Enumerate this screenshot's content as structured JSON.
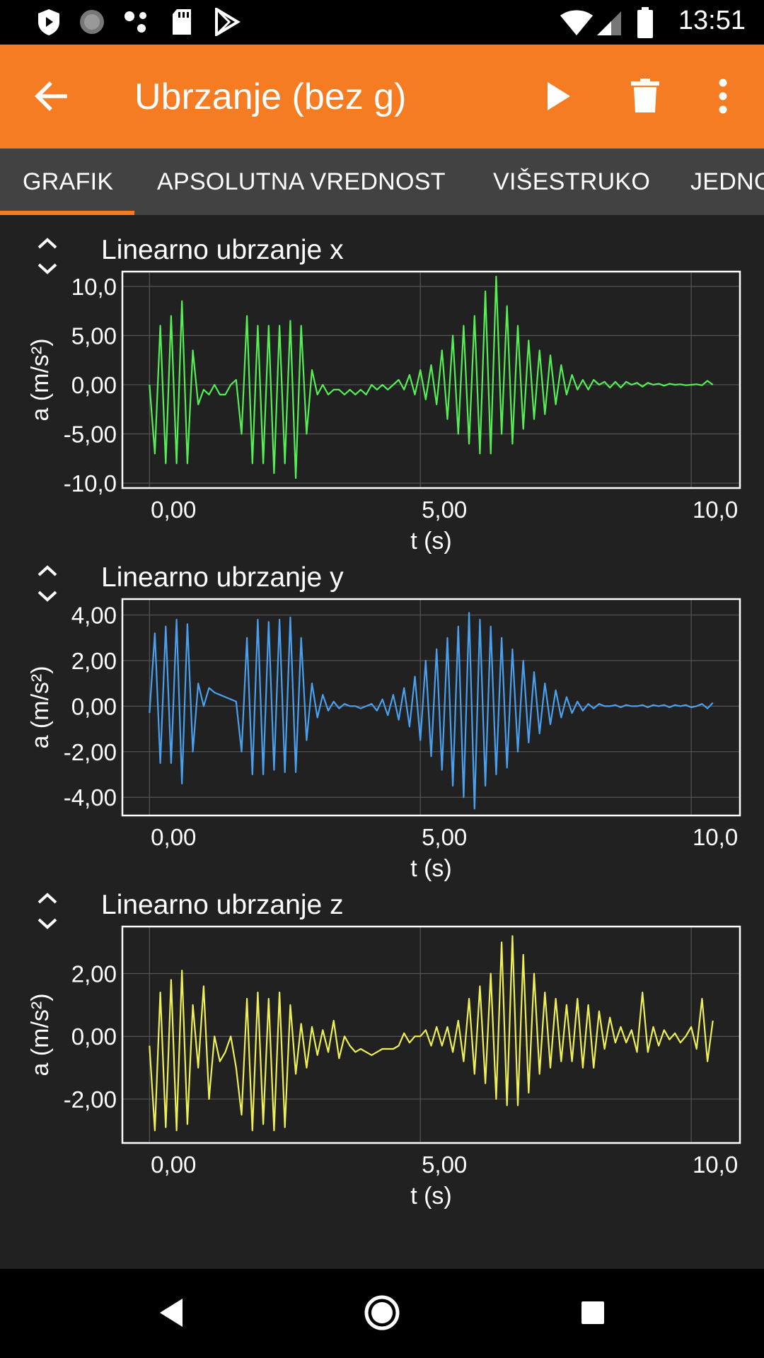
{
  "status_bar": {
    "time": "13:51",
    "icons": [
      "shield-icon",
      "loading-icon",
      "dots-icon",
      "sd-card-icon",
      "play-store-icon",
      "wifi-icon",
      "signal-icon",
      "battery-icon"
    ]
  },
  "app_bar": {
    "title": "Ubrzanje (bez g)",
    "icons": [
      "back-arrow-icon",
      "play-icon",
      "trash-icon",
      "more-vert-icon"
    ]
  },
  "tabs": [
    {
      "label": "GRAFIK",
      "selected": true
    },
    {
      "label": "APSOLUTNA VREDNOST",
      "selected": false
    },
    {
      "label": "VIŠESTRUKO",
      "selected": false
    },
    {
      "label": "JEDNO",
      "selected": false
    }
  ],
  "colors": {
    "accent": "#f57c22",
    "background": "#212121",
    "tab_bar": "#424242",
    "x_series": "#55ee55",
    "y_series": "#4aa0ee",
    "z_series": "#eeee55"
  },
  "chart_data": [
    {
      "type": "line",
      "title": "Linearno ubrzanje x",
      "xlabel": "t (s)",
      "ylabel": "a (m/s²)",
      "xlim": [
        -0.5,
        10.9
      ],
      "ylim": [
        -10.5,
        11.5
      ],
      "xticks": [
        0,
        5,
        10
      ],
      "xtick_labels": [
        "0,00",
        "5,00",
        "10,0"
      ],
      "yticks": [
        10,
        5,
        0,
        -5,
        -10
      ],
      "ytick_labels": [
        "10,0",
        "5,00",
        "0,00",
        "-5,00",
        "-10,0"
      ],
      "color": "#55ee55",
      "grid": true,
      "series": [
        {
          "x": [
            0,
            0.1,
            0.2,
            0.3,
            0.4,
            0.5,
            0.6,
            0.7,
            0.8,
            0.9,
            1,
            1.1,
            1.2,
            1.3,
            1.4,
            1.5,
            1.6,
            1.7,
            1.8,
            1.9,
            2,
            2.1,
            2.2,
            2.3,
            2.4,
            2.5,
            2.6,
            2.7,
            2.8,
            2.9,
            3,
            3.1,
            3.2,
            3.3,
            3.4,
            3.5,
            3.6,
            3.7,
            3.8,
            3.9,
            4,
            4.1,
            4.2,
            4.3,
            4.4,
            4.5,
            4.6,
            4.7,
            4.8,
            4.9,
            5,
            5.1,
            5.2,
            5.3,
            5.4,
            5.5,
            5.6,
            5.7,
            5.8,
            5.9,
            6,
            6.1,
            6.2,
            6.3,
            6.4,
            6.5,
            6.6,
            6.7,
            6.8,
            6.9,
            7,
            7.1,
            7.2,
            7.3,
            7.4,
            7.5,
            7.6,
            7.7,
            7.8,
            7.9,
            8,
            8.1,
            8.2,
            8.3,
            8.4,
            8.5,
            8.6,
            8.7,
            8.8,
            8.9,
            9,
            9.1,
            9.2,
            9.3,
            9.4,
            9.5,
            9.6,
            9.7,
            9.8,
            9.9,
            10,
            10.1,
            10.2,
            10.3,
            10.4
          ],
          "y": [
            0,
            -7,
            6,
            -8,
            7,
            -8,
            8.5,
            -8,
            3.5,
            -2,
            -0.5,
            -1,
            0,
            -1,
            -1,
            0,
            0.5,
            -5,
            7,
            -8,
            6,
            -8,
            6,
            -9,
            6,
            -8,
            6.5,
            -9.5,
            6,
            -5,
            1.5,
            -1,
            0,
            -1,
            -0.5,
            -0.5,
            -1,
            -0.5,
            -1,
            -0.5,
            -1,
            0,
            -0.5,
            0,
            -0.5,
            0,
            0.5,
            -0.5,
            1,
            -1,
            1.5,
            -1.5,
            2,
            -2,
            3.5,
            -3.5,
            5,
            -5,
            6,
            -6,
            7,
            -7,
            9.5,
            -7,
            11,
            -5,
            8,
            -6,
            6,
            -4.5,
            4.5,
            -3.5,
            3.5,
            -3,
            3,
            -2,
            2,
            -1,
            1,
            -0.5,
            0.5,
            -0.5,
            0.5,
            0,
            0.3,
            -0.3,
            0.3,
            -0.3,
            0.3,
            0,
            0.2,
            -0.2,
            0.2,
            0,
            0.1,
            -0.1,
            0.1,
            0,
            0.05,
            -0.05,
            0,
            0.05,
            -0.05,
            0.4,
            0
          ]
        }
      ]
    },
    {
      "type": "line",
      "title": "Linearno ubrzanje y",
      "xlabel": "t (s)",
      "ylabel": "a (m/s²)",
      "xlim": [
        -0.5,
        10.9
      ],
      "ylim": [
        -4.8,
        4.7
      ],
      "xticks": [
        0,
        5,
        10
      ],
      "xtick_labels": [
        "0,00",
        "5,00",
        "10,0"
      ],
      "yticks": [
        4,
        2,
        0,
        -2,
        -4
      ],
      "ytick_labels": [
        "4,00",
        "2,00",
        "0,00",
        "-2,00",
        "-4,00"
      ],
      "color": "#4aa0ee",
      "grid": true,
      "series": [
        {
          "x": [
            0,
            0.1,
            0.2,
            0.3,
            0.4,
            0.5,
            0.6,
            0.7,
            0.8,
            0.9,
            1,
            1.1,
            1.2,
            1.3,
            1.4,
            1.5,
            1.6,
            1.7,
            1.8,
            1.9,
            2,
            2.1,
            2.2,
            2.3,
            2.4,
            2.5,
            2.6,
            2.7,
            2.8,
            2.9,
            3,
            3.1,
            3.2,
            3.3,
            3.4,
            3.5,
            3.6,
            3.7,
            3.8,
            3.9,
            4,
            4.1,
            4.2,
            4.3,
            4.4,
            4.5,
            4.6,
            4.7,
            4.8,
            4.9,
            5,
            5.1,
            5.2,
            5.3,
            5.4,
            5.5,
            5.6,
            5.7,
            5.8,
            5.9,
            6,
            6.1,
            6.2,
            6.3,
            6.4,
            6.5,
            6.6,
            6.7,
            6.8,
            6.9,
            7,
            7.1,
            7.2,
            7.3,
            7.4,
            7.5,
            7.6,
            7.7,
            7.8,
            7.9,
            8,
            8.1,
            8.2,
            8.3,
            8.4,
            8.5,
            8.6,
            8.7,
            8.8,
            8.9,
            9,
            9.1,
            9.2,
            9.3,
            9.4,
            9.5,
            9.6,
            9.7,
            9.8,
            9.9,
            10,
            10.1,
            10.2,
            10.3,
            10.4
          ],
          "y": [
            -0.3,
            3.2,
            -2.5,
            3.5,
            -2.5,
            3.8,
            -3.4,
            3.6,
            -2,
            1,
            0,
            0.8,
            0.6,
            0.5,
            0.4,
            0.3,
            0.2,
            -2,
            3,
            -3,
            3.8,
            -3,
            3.7,
            -2.8,
            3.8,
            -2.9,
            3.9,
            -2.9,
            3,
            -1.5,
            1,
            -0.5,
            0.5,
            -0.2,
            0.2,
            -0.1,
            0.1,
            0,
            0,
            -0.1,
            0,
            0.1,
            -0.2,
            0.3,
            -0.4,
            0.5,
            -0.6,
            0.8,
            -0.9,
            1.3,
            -1.5,
            2,
            -2.2,
            2.5,
            -2.8,
            3,
            -3.5,
            3.5,
            -4,
            4.1,
            -4.5,
            3.8,
            -3.5,
            3.5,
            -3,
            3,
            -2.7,
            2.5,
            -2,
            2,
            -1.6,
            1.5,
            -1.2,
            1,
            -0.8,
            0.7,
            -0.5,
            0.4,
            -0.3,
            0.2,
            -0.2,
            0.1,
            -0.1,
            0.1,
            0,
            0,
            0.05,
            -0.05,
            0.05,
            0,
            0,
            0.05,
            -0.05,
            0.05,
            0,
            0.05,
            -0.05,
            0.05,
            0,
            0.05,
            -0.05,
            0,
            0.1,
            -0.1,
            0.15
          ]
        }
      ]
    },
    {
      "type": "line",
      "title": "Linearno ubrzanje z",
      "xlabel": "t (s)",
      "ylabel": "a (m/s²)",
      "xlim": [
        -0.5,
        10.9
      ],
      "ylim": [
        -3.4,
        3.5
      ],
      "xticks": [
        0,
        5,
        10
      ],
      "xtick_labels": [
        "0,00",
        "5,00",
        "10,0"
      ],
      "yticks": [
        2,
        0,
        -2
      ],
      "ytick_labels": [
        "2,00",
        "0,00",
        "-2,00"
      ],
      "color": "#eeee55",
      "grid": true,
      "series": [
        {
          "x": [
            0,
            0.1,
            0.2,
            0.3,
            0.4,
            0.5,
            0.6,
            0.7,
            0.8,
            0.9,
            1,
            1.1,
            1.2,
            1.3,
            1.4,
            1.5,
            1.6,
            1.7,
            1.8,
            1.9,
            2,
            2.1,
            2.2,
            2.3,
            2.4,
            2.5,
            2.6,
            2.7,
            2.8,
            2.9,
            3,
            3.1,
            3.2,
            3.3,
            3.4,
            3.5,
            3.6,
            3.7,
            3.8,
            3.9,
            4,
            4.1,
            4.2,
            4.3,
            4.4,
            4.5,
            4.6,
            4.7,
            4.8,
            4.9,
            5,
            5.1,
            5.2,
            5.3,
            5.4,
            5.5,
            5.6,
            5.7,
            5.8,
            5.9,
            6,
            6.1,
            6.2,
            6.3,
            6.4,
            6.5,
            6.6,
            6.7,
            6.8,
            6.9,
            7,
            7.1,
            7.2,
            7.3,
            7.4,
            7.5,
            7.6,
            7.7,
            7.8,
            7.9,
            8,
            8.1,
            8.2,
            8.3,
            8.4,
            8.5,
            8.6,
            8.7,
            8.8,
            8.9,
            9,
            9.1,
            9.2,
            9.3,
            9.4,
            9.5,
            9.6,
            9.7,
            9.8,
            9.9,
            10,
            10.1,
            10.2,
            10.3,
            10.4
          ],
          "y": [
            -0.3,
            -3,
            1.4,
            -2.9,
            1.8,
            -3,
            2.1,
            -2.8,
            1,
            -1,
            1.6,
            -2,
            0,
            -0.8,
            -0.5,
            0,
            -1,
            -2.5,
            1.2,
            -3,
            1.4,
            -2.8,
            1.2,
            -3,
            1.4,
            -2.9,
            1,
            -1.2,
            0.4,
            -1,
            0.3,
            -0.6,
            0.2,
            -0.5,
            0.5,
            -0.7,
            0,
            -0.3,
            -0.5,
            -0.4,
            -0.5,
            -0.6,
            -0.5,
            -0.4,
            -0.4,
            -0.4,
            -0.3,
            0.1,
            -0.2,
            0,
            0,
            0.2,
            -0.3,
            0.3,
            -0.3,
            0.3,
            -0.5,
            0.5,
            -0.8,
            1.2,
            -1.2,
            1.6,
            -1.5,
            2,
            -2,
            3,
            -2.2,
            3.2,
            -2.2,
            2.6,
            -1.8,
            2,
            -1.2,
            1.4,
            -1,
            1.2,
            -0.8,
            1,
            -0.8,
            1.2,
            -1,
            1,
            -1,
            0.8,
            -0.4,
            0.6,
            -0.2,
            0.3,
            -0.2,
            0.2,
            -0.5,
            1.4,
            -0.5,
            0.3,
            -0.3,
            0.2,
            -0.1,
            0.1,
            -0.2,
            0,
            0.3,
            -0.4,
            1.2,
            -0.8,
            0.5
          ]
        }
      ]
    }
  ]
}
